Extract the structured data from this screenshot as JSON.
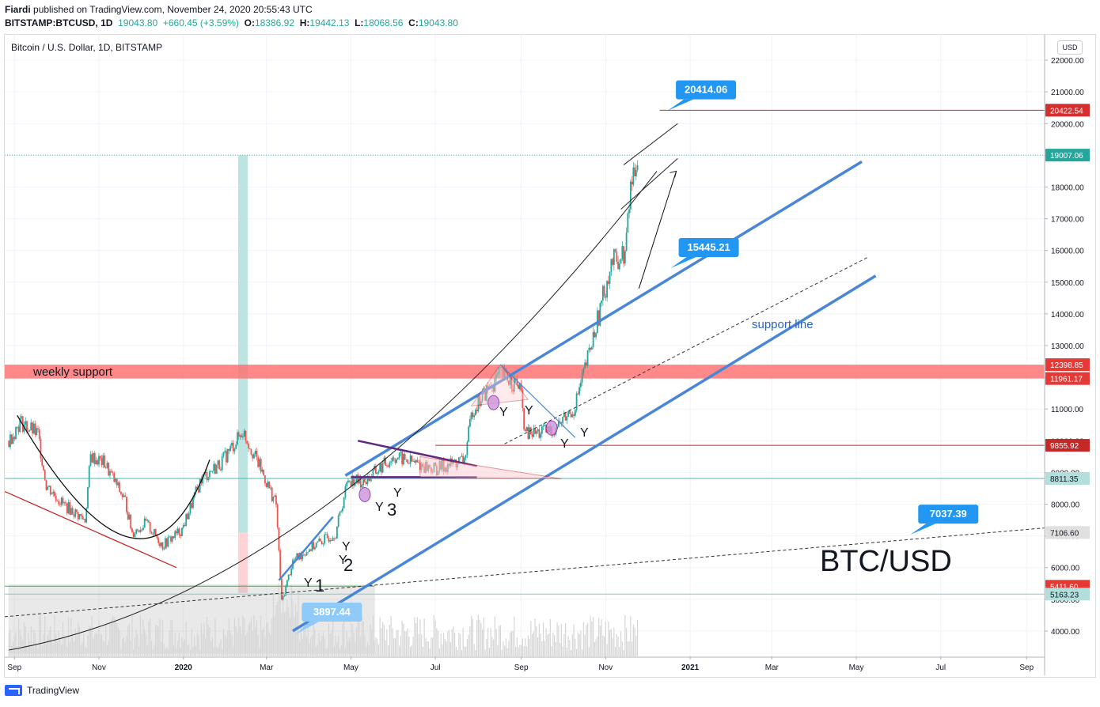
{
  "header": {
    "author": "Fiardi",
    "published_text": "published on TradingView.com, November 24, 2020 20:55:43 UTC",
    "symbol": "BITSTAMP:BTCUSD, 1D",
    "last": "19043.80",
    "change": "+660.45 (+3.59%)",
    "o_label": "O:",
    "o": "18386.92",
    "h_label": "H:",
    "h": "19442.13",
    "l_label": "L:",
    "l": "18068.56",
    "c_label": "C:",
    "c": "19043.80"
  },
  "pane_title": "Bitcoin / U.S. Dollar, 1D, BITSTAMP",
  "currency_button": "USD",
  "footer": {
    "brand": "TradingView"
  },
  "colors": {
    "up": "#26a69a",
    "down": "#ef5350",
    "trend_blue": "#4a86d8",
    "weekly_support": "#ff6b6b",
    "callout": "#2196f3",
    "red_line": "#c62828"
  },
  "chart_data": {
    "type": "candlestick",
    "symbol": "BTC/USD",
    "ylim": [
      3200,
      22800
    ],
    "y_ticks": [
      4000,
      5000,
      6000,
      7000,
      8000,
      9000,
      10000,
      11000,
      12000,
      13000,
      14000,
      15000,
      16000,
      17000,
      18000,
      19000,
      20000,
      21000,
      22000
    ],
    "y_tick_labels": [
      "4000.00",
      "5000.00",
      "6000.00",
      "7000.00",
      "8000.00",
      "9000.00",
      "10000.00",
      "11000.00",
      "12000.00",
      "13000.00",
      "14000.00",
      "15000.00",
      "16000.00",
      "17000.00",
      "18000.00",
      "19000.00",
      "20000.00",
      "21000.00",
      "22000.00"
    ],
    "x_ticks": [
      "2019-09-01",
      "2019-11-01",
      "2020-01-01",
      "2020-03-01",
      "2020-05-01",
      "2020-07-01",
      "2020-09-01",
      "2020-11-01",
      "2021-01-01",
      "2021-03-01",
      "2021-05-01",
      "2021-07-01",
      "2021-09-01"
    ],
    "x_labels": [
      "Sep",
      "Nov",
      "2020",
      "Mar",
      "May",
      "Jul",
      "Sep",
      "Nov",
      "2021",
      "Mar",
      "May",
      "Jul",
      "Sep"
    ],
    "close_path": [
      [
        "2019-08-28",
        10000
      ],
      [
        "2019-09-05",
        10600
      ],
      [
        "2019-09-18",
        10200
      ],
      [
        "2019-09-24",
        8600
      ],
      [
        "2019-10-06",
        8000
      ],
      [
        "2019-10-22",
        7500
      ],
      [
        "2019-10-26",
        9500
      ],
      [
        "2019-11-05",
        9300
      ],
      [
        "2019-11-20",
        8100
      ],
      [
        "2019-11-25",
        7100
      ],
      [
        "2019-12-05",
        7400
      ],
      [
        "2019-12-17",
        6700
      ],
      [
        "2019-12-31",
        7200
      ],
      [
        "2020-01-14",
        8800
      ],
      [
        "2020-01-28",
        9300
      ],
      [
        "2020-02-13",
        10300
      ],
      [
        "2020-02-25",
        9200
      ],
      [
        "2020-03-08",
        8000
      ],
      [
        "2020-03-12",
        4900
      ],
      [
        "2020-03-20",
        6200
      ],
      [
        "2020-04-01",
        6600
      ],
      [
        "2020-04-20",
        7100
      ],
      [
        "2020-04-29",
        8800
      ],
      [
        "2020-05-10",
        8700
      ],
      [
        "2020-06-01",
        9500
      ],
      [
        "2020-07-01",
        9100
      ],
      [
        "2020-07-22",
        9400
      ],
      [
        "2020-07-28",
        11000
      ],
      [
        "2020-08-17",
        12100
      ],
      [
        "2020-08-31",
        11700
      ],
      [
        "2020-09-04",
        10200
      ],
      [
        "2020-09-23",
        10300
      ],
      [
        "2020-10-09",
        11000
      ],
      [
        "2020-10-21",
        12900
      ],
      [
        "2020-11-05",
        15600
      ],
      [
        "2020-11-15",
        15900
      ],
      [
        "2020-11-19",
        18000
      ],
      [
        "2020-11-24",
        19043.8
      ]
    ],
    "horizontal_levels": [
      {
        "price": 20422.54,
        "label": "20422.54"
      },
      {
        "price": 19007.06,
        "label": "19007.06"
      },
      {
        "price": 12398.85,
        "label": "12398.85"
      },
      {
        "price": 11961.17,
        "label": "11961.17"
      },
      {
        "price": 9855.92,
        "label": "9855.92"
      },
      {
        "price": 8811.35,
        "label": "8811.35"
      },
      {
        "price": 7106.6,
        "label": "7106.60"
      },
      {
        "price": 5411.6,
        "label": "5411.60"
      },
      {
        "price": 5163.23,
        "label": "5163.23"
      }
    ],
    "callouts": [
      {
        "label": "20414.06",
        "date": "2020-12-16",
        "price": 20414.06
      },
      {
        "label": "15445.21",
        "date": "2020-12-18",
        "price": 15445.21
      },
      {
        "label": "7037.39",
        "date": "2021-06-09",
        "price": 7037.39
      },
      {
        "label": "3897.44",
        "date": "2020-03-22",
        "price": 3897.44
      }
    ],
    "annotations": {
      "weekly_support": "weekly support",
      "support_line": "support line",
      "big_label": "BTC/USD",
      "wave_labels": [
        "1",
        "2",
        "3"
      ],
      "wave_y": "Y"
    }
  }
}
